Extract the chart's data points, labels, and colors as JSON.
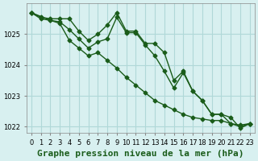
{
  "title": "Graphe pression niveau de la mer (hPa)",
  "background_color": "#d8f0f0",
  "grid_color": "#b0d8d8",
  "line_color": "#1a5c1a",
  "series": [
    {
      "x": [
        0,
        1,
        2,
        3,
        4,
        5,
        6,
        7,
        8,
        9,
        10,
        11,
        12,
        13,
        14,
        15,
        16,
        17,
        18,
        19,
        20,
        21,
        22,
        23
      ],
      "y": [
        1025.7,
        1025.55,
        1025.5,
        1025.5,
        1025.5,
        1025.1,
        1024.8,
        1025.0,
        1025.3,
        1025.7,
        1025.1,
        1025.1,
        1024.7,
        1024.7,
        1024.4,
        1023.5,
        1023.8,
        1023.15,
        1022.85,
        1022.4,
        1022.4,
        1022.1,
        1022.05,
        1022.1
      ]
    },
    {
      "x": [
        0,
        1,
        2,
        3,
        4,
        5,
        6,
        7,
        8,
        9,
        10,
        11,
        12,
        13,
        14,
        15,
        16,
        17,
        18,
        19,
        20,
        21,
        22,
        23
      ],
      "y": [
        1025.7,
        1025.5,
        1025.45,
        1025.35,
        1024.8,
        1024.55,
        1024.3,
        1024.4,
        1024.15,
        1023.9,
        1023.6,
        1023.35,
        1023.1,
        1022.85,
        1022.7,
        1022.55,
        1022.4,
        1022.3,
        1022.25,
        1022.2,
        1022.2,
        1022.1,
        1022.0,
        1022.1
      ]
    },
    {
      "x": [
        0,
        2,
        3,
        4,
        5,
        6,
        7,
        8,
        9,
        10,
        11,
        12,
        13,
        14,
        15,
        16,
        17,
        18,
        19,
        20,
        21,
        22,
        23
      ],
      "y": [
        1025.7,
        1025.45,
        1025.4,
        1025.15,
        1024.85,
        1024.55,
        1024.75,
        1024.85,
        1025.55,
        1025.05,
        1025.05,
        1024.65,
        1024.3,
        1023.8,
        1023.25,
        1023.75,
        1023.15,
        1022.85,
        1022.4,
        1022.4,
        1022.3,
        1021.95,
        1022.1
      ]
    }
  ],
  "xlim": [
    -0.5,
    23.5
  ],
  "ylim": [
    1021.8,
    1026.0
  ],
  "yticks": [
    1022,
    1023,
    1024,
    1025
  ],
  "xticks": [
    0,
    1,
    2,
    3,
    4,
    5,
    6,
    7,
    8,
    9,
    10,
    11,
    12,
    13,
    14,
    15,
    16,
    17,
    18,
    19,
    20,
    21,
    22,
    23
  ],
  "xtick_labels": [
    "0",
    "1",
    "2",
    "3",
    "4",
    "5",
    "6",
    "7",
    "8",
    "9",
    "10",
    "11",
    "12",
    "13",
    "14",
    "15",
    "16",
    "17",
    "18",
    "19",
    "20",
    "21",
    "22",
    "23"
  ],
  "marker": "D",
  "marker_size": 2.5,
  "linewidth": 1.0,
  "title_fontsize": 8,
  "tick_fontsize": 6
}
